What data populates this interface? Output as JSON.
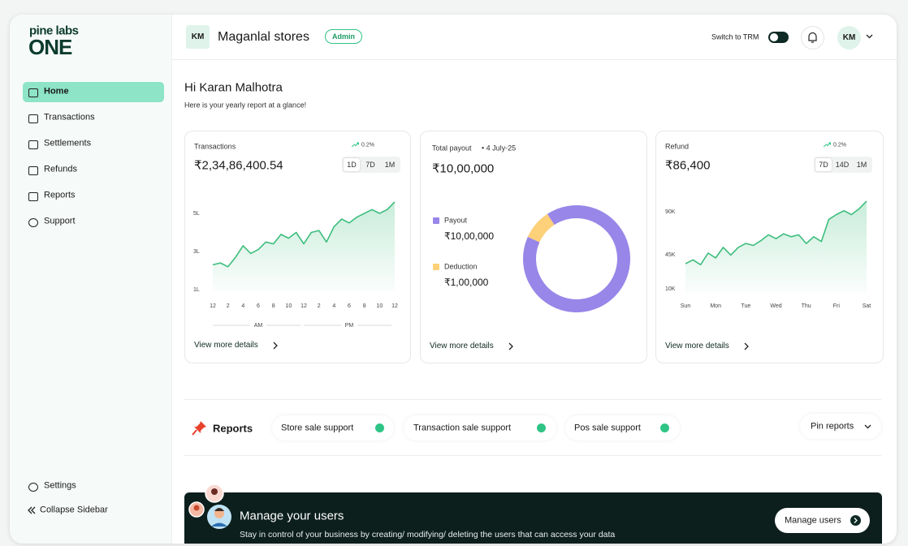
{
  "sidebar": {
    "logo_top": "pine labs",
    "logo_bottom": "ONE",
    "nav": [
      "Home",
      "Transactions",
      "Settlements",
      "Refunds",
      "Reports",
      "Support"
    ],
    "settings": "Settings",
    "collapse": "Collapse Sidebar"
  },
  "header": {
    "store_initials": "KM",
    "store_name": "Maganlal stores",
    "role": "Admin",
    "switch_label": "Switch to TRM",
    "user_initials": "KM"
  },
  "greeting": {
    "title": "Hi Karan Malhotra",
    "subtitle": "Here is your yearly report at a glance!"
  },
  "cards": [
    {
      "title": "Transactions",
      "trend": "0.2%",
      "amount": "₹2,34,86,400.54",
      "timeframes": [
        "1D",
        "7D",
        "1M"
      ],
      "link": "View more details",
      "chart": {
        "type": "line",
        "color": "#3dbd7d",
        "x": [
          0,
          1,
          2,
          3,
          4,
          5,
          6,
          7,
          8,
          9,
          10,
          11,
          12,
          13,
          14,
          15,
          16,
          17,
          18,
          19,
          20,
          21,
          22,
          23,
          24
        ],
        "values": [
          2.3,
          2.4,
          2.2,
          2.7,
          3.3,
          2.9,
          3.1,
          3.5,
          3.4,
          3.9,
          3.7,
          4.0,
          3.4,
          4.0,
          4.1,
          3.5,
          4.3,
          4.7,
          4.5,
          4.8,
          5.0,
          5.2,
          5.0,
          5.2,
          5.6
        ],
        "xlim": [
          0,
          24
        ],
        "xticks": [
          {
            "value": 0,
            "label": "12"
          },
          2,
          4,
          6,
          8,
          10,
          12,
          {
            "value": 14,
            "label": "2"
          },
          {
            "value": 16,
            "label": "4"
          },
          {
            "value": 18,
            "label": "6"
          },
          {
            "value": 20,
            "label": "8"
          },
          {
            "value": 22,
            "label": "10"
          },
          {
            "value": 24,
            "label": "12"
          }
        ],
        "ylim": [
          0.9,
          5.8
        ],
        "yticks": [
          {
            "value": 1,
            "label": "1L"
          },
          {
            "value": 3,
            "label": "3L"
          },
          {
            "value": 5,
            "label": "5L"
          }
        ],
        "x_groups": [
          "AM",
          "PM"
        ]
      }
    },
    {
      "title": "Total payout",
      "date": "• 4 July-25",
      "amount": "₹10,00,000",
      "link": "View more details",
      "chart": {
        "type": "donut",
        "categories": [
          "Payout",
          "Deduction"
        ],
        "values": [
          1000000,
          100000
        ],
        "value_labels": [
          "₹10,00,000",
          "₹1,00,000"
        ],
        "colors": [
          "#9886e8",
          "#fdd07a"
        ]
      }
    },
    {
      "title": "Refund",
      "trend": "0.2%",
      "amount": "₹86,400",
      "timeframes": [
        "7D",
        "14D",
        "1M"
      ],
      "link": "View more details",
      "chart": {
        "type": "line",
        "color": "#3dbd7d",
        "x": [
          0,
          0.25,
          0.5,
          0.75,
          1,
          1.25,
          1.5,
          1.75,
          2,
          2.25,
          2.5,
          2.75,
          3,
          3.25,
          3.5,
          3.75,
          4,
          4.25,
          4.5,
          4.75,
          5,
          5.25,
          5.5,
          5.75,
          6
        ],
        "values": [
          36000,
          40000,
          35000,
          47000,
          42000,
          53000,
          45000,
          53000,
          57000,
          55000,
          60000,
          66000,
          62000,
          67000,
          64000,
          66000,
          57000,
          64000,
          59000,
          82000,
          87000,
          91000,
          87000,
          93000,
          101000
        ],
        "xlim": [
          0,
          6
        ],
        "xticks": [
          {
            "value": 0,
            "label": "Sun"
          },
          {
            "value": 1,
            "label": "Mon"
          },
          {
            "value": 2,
            "label": "Tue"
          },
          {
            "value": 3,
            "label": "Wed"
          },
          {
            "value": 4,
            "label": "Thu"
          },
          {
            "value": 5,
            "label": "Fri"
          },
          {
            "value": 6,
            "label": "Sat"
          }
        ],
        "ylim": [
          5000,
          105000
        ],
        "yticks": [
          {
            "value": 10000,
            "label": "10K"
          },
          {
            "value": 45000,
            "label": "45K"
          },
          {
            "value": 90000,
            "label": "90K"
          }
        ]
      }
    }
  ],
  "reports": {
    "title": "Reports",
    "chips": [
      "Store sale support",
      "Transaction sale support",
      "Pos sale support"
    ],
    "pin": "Pin reports"
  },
  "banner": {
    "title": "Manage your users",
    "subtitle": "Stay in control of your business by creating/ modifying/ deleting the users that can access your data",
    "button": "Manage users"
  }
}
